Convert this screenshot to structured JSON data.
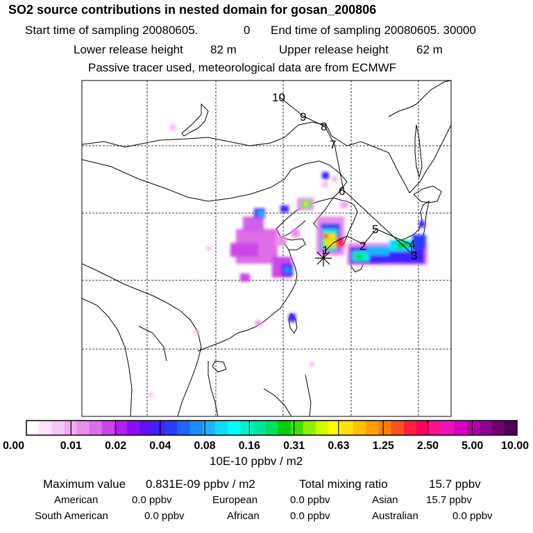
{
  "header": {
    "title": "SO2 source contributions in nested domain for gosan_200806",
    "start_label": "Start time of sampling 20080605.",
    "start_value": "0",
    "end_label": "End time of sampling 20080605. 30000",
    "lower_label": "Lower release height",
    "lower_value": "82 m",
    "upper_label": "Upper release height",
    "upper_value": "62 m",
    "note": "Passive tracer used, meteorological data are from ECMWF"
  },
  "map": {
    "trajectory_labels": [
      "1",
      "2",
      "3",
      "4",
      "5",
      "6",
      "7",
      "8",
      "9",
      "10"
    ],
    "receptor_marker": "star",
    "colors": {
      "coast": "#000000",
      "grid": "#000000"
    }
  },
  "colorbar": {
    "ticks": [
      "0.00",
      "0.01",
      "0.02",
      "0.04",
      "0.08",
      "0.16",
      "0.31",
      "0.63",
      "1.25",
      "2.50",
      "5.00",
      "10.00"
    ],
    "unit": "10E-10 ppbv / m2",
    "colors": [
      "#ffffff",
      "#fbe3fb",
      "#f6c8f6",
      "#f0aaf0",
      "#e88ee8",
      "#dd6de6",
      "#cc44e8",
      "#b21ef0",
      "#8a0ff8",
      "#6010f8",
      "#4020ff",
      "#2a3cff",
      "#1e64ff",
      "#1e8cff",
      "#19b4ff",
      "#10dcff",
      "#00ffff",
      "#00f0c8",
      "#00e69b",
      "#00e05a",
      "#00d000",
      "#40e000",
      "#90f000",
      "#d0ff00",
      "#ffff00",
      "#ffe000",
      "#ffc000",
      "#ffa000",
      "#ff8000",
      "#ff5020",
      "#ff2040",
      "#ff0060",
      "#ff1090",
      "#f010b8",
      "#d800c0",
      "#b800b0",
      "#900090",
      "#700070",
      "#500050"
    ]
  },
  "stats": {
    "max_label": "Maximum value",
    "max_value": "0.831E-09 ppbv / m2",
    "total_label": "Total mixing ratio",
    "total_value": "15.7 ppbv",
    "regions": [
      {
        "name": "American",
        "value": "0.0 ppbv"
      },
      {
        "name": "European",
        "value": "0.0 ppbv"
      },
      {
        "name": "Asian",
        "value": "15.7 ppbv"
      },
      {
        "name": "South American",
        "value": "0.0 ppbv"
      },
      {
        "name": "African",
        "value": "0.0 ppbv"
      },
      {
        "name": "Australian",
        "value": "0.0 ppbv"
      }
    ]
  }
}
